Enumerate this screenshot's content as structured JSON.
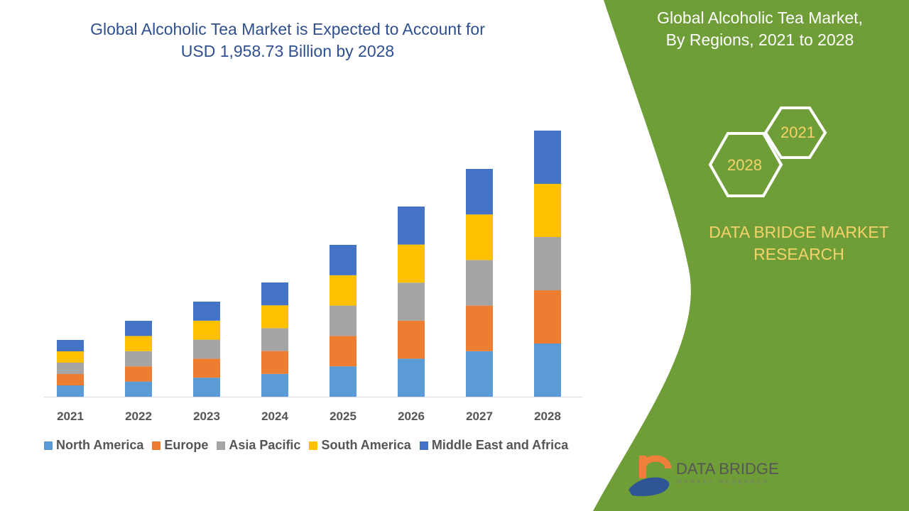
{
  "title_line1": "Global Alcoholic Tea Market is Expected to Account for",
  "title_line2": "USD 1,958.73 Billion by 2028",
  "right_panel": {
    "title_line1": "Global Alcoholic Tea Market,",
    "title_line2": "By Regions, 2021 to 2028",
    "hex_a": "2021",
    "hex_b": "2028",
    "brand_line1": "DATA BRIDGE MARKET",
    "brand_line2": "RESEARCH",
    "panel_color": "#6f9e38"
  },
  "logo": {
    "name": "DATA BRIDGE",
    "sub": "MARKET RESEARCH"
  },
  "chart_data": {
    "type": "bar",
    "stacked": true,
    "categories": [
      "2021",
      "2022",
      "2023",
      "2024",
      "2025",
      "2026",
      "2027",
      "2028"
    ],
    "series": [
      {
        "name": "North America",
        "color": "#5b9bd5",
        "values": [
          16,
          21.4,
          26.8,
          32.2,
          42.8,
          53.6,
          64.2,
          75
        ]
      },
      {
        "name": "Europe",
        "color": "#ed7d31",
        "values": [
          16,
          21.4,
          26.8,
          32.2,
          42.8,
          53.6,
          64.2,
          75
        ]
      },
      {
        "name": "Asia Pacific",
        "color": "#a5a5a5",
        "values": [
          16,
          21.4,
          26.8,
          32.2,
          42.8,
          53.6,
          64.2,
          75
        ]
      },
      {
        "name": "South America",
        "color": "#ffc000",
        "values": [
          16,
          21.4,
          26.8,
          32.2,
          42.8,
          53.6,
          64.2,
          75
        ]
      },
      {
        "name": "Middle East and Africa",
        "color": "#4472c4",
        "values": [
          16,
          21.4,
          26.8,
          32.2,
          42.8,
          53.6,
          64.2,
          75
        ]
      }
    ],
    "legend": "bottom",
    "grid": false,
    "y_axis_shown": false
  }
}
